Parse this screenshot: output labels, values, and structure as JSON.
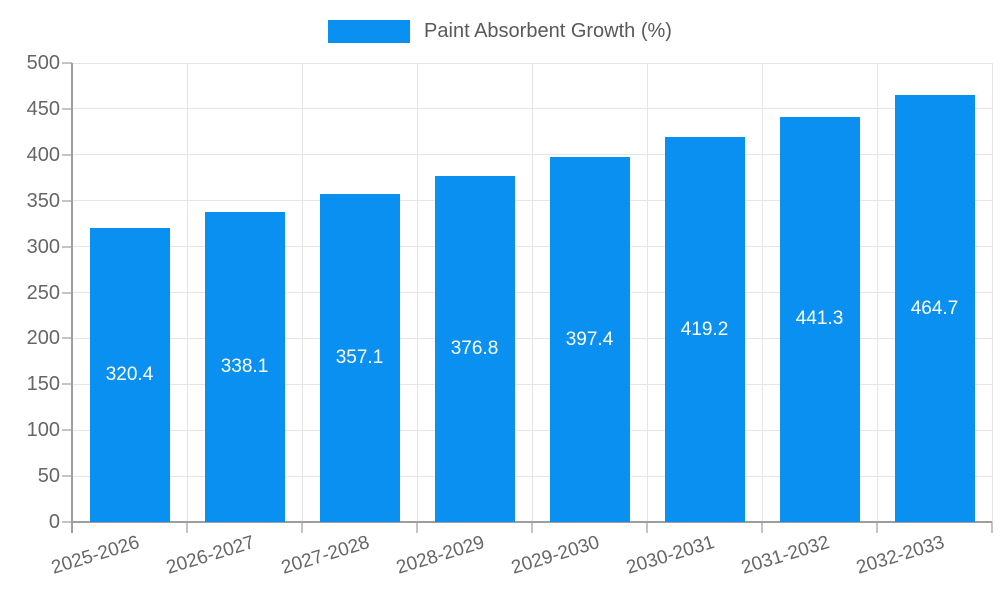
{
  "chart_data": {
    "type": "bar",
    "title": "Paint Absorbent Growth (%)",
    "legend": {
      "position": "top",
      "label": "Paint Absorbent Growth (%)"
    },
    "categories": [
      "2025-2026",
      "2026-2027",
      "2027-2028",
      "2028-2029",
      "2029-2030",
      "2030-2031",
      "2031-2032",
      "2032-2033"
    ],
    "values": [
      320.4,
      338.1,
      357.1,
      376.8,
      397.4,
      419.2,
      441.3,
      464.7
    ],
    "value_labels": [
      "320.4",
      "338.1",
      "357.1",
      "376.8",
      "397.4",
      "419.2",
      "441.3",
      "464.7"
    ],
    "xlabel": "",
    "ylabel": "",
    "ylim": [
      0,
      500
    ],
    "y_ticks": [
      "0",
      "50",
      "100",
      "150",
      "200",
      "250",
      "300",
      "350",
      "400",
      "450",
      "500"
    ],
    "grid": "horizontal-and-vertical",
    "colors": {
      "bar": "#0a90f0",
      "bar_label": "#ffffff",
      "axis": "#9e9e9e",
      "grid": "#e5e5e5",
      "tick": "#c4c4c4",
      "tick_label": "#666666",
      "legend_text": "#595959",
      "background": "#ffffff"
    }
  }
}
